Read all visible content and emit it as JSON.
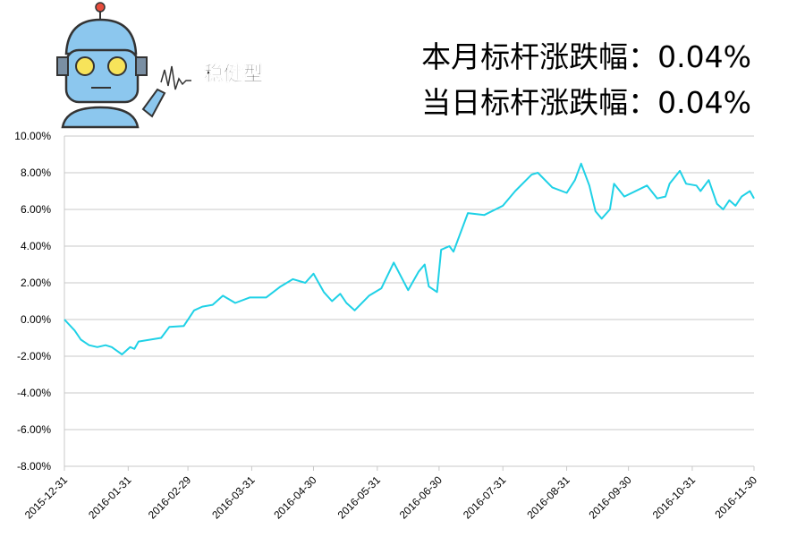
{
  "chart_data": {
    "type": "line",
    "badge": "稳健型",
    "annotations": [
      "本月标杆涨跌幅：0.04%",
      "当日标杆涨跌幅：0.04%"
    ],
    "x": [
      "2015-12-31",
      "2016-01-05",
      "2016-01-08",
      "2016-01-12",
      "2016-01-16",
      "2016-01-20",
      "2016-01-23",
      "2016-01-28",
      "2016-02-01",
      "2016-02-03",
      "2016-02-05",
      "2016-02-16",
      "2016-02-20",
      "2016-02-27",
      "2016-03-03",
      "2016-03-07",
      "2016-03-12",
      "2016-03-17",
      "2016-03-23",
      "2016-03-30",
      "2016-04-07",
      "2016-04-14",
      "2016-04-20",
      "2016-04-26",
      "2016-04-30",
      "2016-05-05",
      "2016-05-09",
      "2016-05-13",
      "2016-05-16",
      "2016-05-20",
      "2016-05-27",
      "2016-06-02",
      "2016-06-08",
      "2016-06-15",
      "2016-06-20",
      "2016-06-23",
      "2016-06-25",
      "2016-06-29",
      "2016-07-01",
      "2016-07-05",
      "2016-07-07",
      "2016-07-14",
      "2016-07-22",
      "2016-07-31",
      "2016-08-06",
      "2016-08-14",
      "2016-08-17",
      "2016-08-24",
      "2016-08-31",
      "2016-09-04",
      "2016-09-07",
      "2016-09-11",
      "2016-09-14",
      "2016-09-17",
      "2016-09-21",
      "2016-09-23",
      "2016-09-28",
      "2016-10-09",
      "2016-10-14",
      "2016-10-18",
      "2016-10-20",
      "2016-10-25",
      "2016-10-28",
      "2016-11-02",
      "2016-11-04",
      "2016-11-08",
      "2016-11-12",
      "2016-11-15",
      "2016-11-18",
      "2016-11-21",
      "2016-11-24",
      "2016-11-28",
      "2016-11-30"
    ],
    "series": [
      {
        "color": "#1fd1e6",
        "values": [
          0.0,
          -0.6,
          -1.1,
          -1.4,
          -1.5,
          -1.4,
          -1.5,
          -1.9,
          -1.5,
          -1.6,
          -1.2,
          -1.0,
          -0.4,
          -0.35,
          0.5,
          0.7,
          0.8,
          1.3,
          0.9,
          1.2,
          1.2,
          1.8,
          2.2,
          2.0,
          2.5,
          1.5,
          1.0,
          1.4,
          0.9,
          0.5,
          1.3,
          1.7,
          3.1,
          1.6,
          2.6,
          3.0,
          1.8,
          1.5,
          3.8,
          4.0,
          3.7,
          5.8,
          5.7,
          6.2,
          7.0,
          7.9,
          8.0,
          7.2,
          6.9,
          7.6,
          8.5,
          7.3,
          5.9,
          5.5,
          6.0,
          7.4,
          6.7,
          7.3,
          6.6,
          6.7,
          7.4,
          8.1,
          7.4,
          7.3,
          7.0,
          7.6,
          6.3,
          6.0,
          6.5,
          6.2,
          6.7,
          7.0,
          6.6
        ]
      }
    ],
    "xlim": [
      "2015-12-31",
      "2016-11-30"
    ],
    "xticks": [
      "2015-12-31",
      "2016-01-31",
      "2016-02-29",
      "2016-03-31",
      "2016-04-30",
      "2016-05-31",
      "2016-06-30",
      "2016-07-31",
      "2016-08-31",
      "2016-09-30",
      "2016-10-31",
      "2016-11-30"
    ],
    "ylim": [
      -8,
      10
    ],
    "yticks": [
      {
        "value": -8,
        "label": "-8.00%"
      },
      {
        "value": -6,
        "label": "-6.00%"
      },
      {
        "value": -4,
        "label": "-4.00%"
      },
      {
        "value": -2,
        "label": "-2.00%"
      },
      {
        "value": 0,
        "label": "0.00%"
      },
      {
        "value": 2,
        "label": "2.00%"
      },
      {
        "value": 4,
        "label": "4.00%"
      },
      {
        "value": 6,
        "label": "6.00%"
      },
      {
        "value": 8,
        "label": "8.00%"
      },
      {
        "value": 10,
        "label": "10.00%"
      }
    ],
    "grid": true
  }
}
